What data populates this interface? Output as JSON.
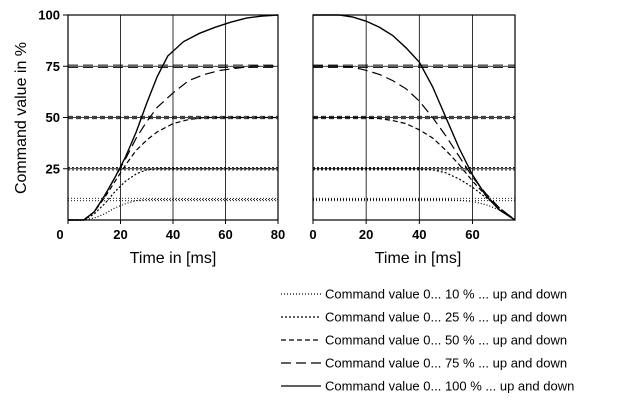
{
  "chart_data": [
    {
      "type": "line",
      "panel": "ramp-up",
      "xlabel": "Time in [ms]",
      "ylabel": "Command value in %",
      "xlim": [
        0,
        80
      ],
      "ylim": [
        0,
        100
      ],
      "xticks": [
        "0",
        "20",
        "40",
        "60",
        "80"
      ],
      "yticks": [
        "25",
        "50",
        "75",
        "100"
      ],
      "grid": true,
      "series": [
        {
          "dash": "1,2",
          "target": 10,
          "x": [
            0,
            4,
            6,
            10,
            14,
            18,
            22,
            26,
            30,
            34,
            40,
            50,
            60,
            70,
            80
          ],
          "y": [
            0,
            0,
            0,
            1,
            3,
            6,
            8,
            9.5,
            10,
            10,
            10,
            10,
            10,
            10,
            10
          ]
        },
        {
          "dash": "2,2",
          "target": 25,
          "x": [
            0,
            4,
            6,
            10,
            14,
            18,
            22,
            26,
            30,
            34,
            40,
            50,
            60,
            70,
            80
          ],
          "y": [
            0,
            0,
            0,
            3,
            8,
            14,
            19,
            22.5,
            24.5,
            25,
            25,
            25,
            25,
            25,
            25
          ]
        },
        {
          "dash": "5,3",
          "target": 50,
          "x": [
            0,
            4,
            6,
            10,
            14,
            18,
            22,
            26,
            30,
            34,
            40,
            46,
            52,
            60,
            70,
            80
          ],
          "y": [
            0,
            0,
            0,
            4,
            11,
            19,
            27,
            34,
            39,
            43,
            47,
            49,
            50,
            50,
            50,
            50
          ]
        },
        {
          "dash": "10,5",
          "target": 75,
          "x": [
            0,
            4,
            6,
            10,
            14,
            18,
            22,
            26,
            30,
            34,
            40,
            46,
            52,
            58,
            64,
            70,
            80
          ],
          "y": [
            0,
            0,
            0,
            4,
            12,
            21,
            30,
            40,
            48,
            55,
            62,
            68,
            71,
            73,
            74,
            75,
            75
          ]
        },
        {
          "dash": "",
          "target": 100,
          "x": [
            0,
            4,
            6,
            10,
            14,
            18,
            22,
            26,
            30,
            34,
            38,
            44,
            50,
            56,
            62,
            68,
            74,
            80
          ],
          "y": [
            0,
            0,
            0,
            4,
            12,
            21,
            31,
            43,
            57,
            70,
            80,
            87,
            91,
            94,
            96.5,
            98.5,
            99.5,
            100
          ]
        }
      ]
    },
    {
      "type": "line",
      "panel": "ramp-down",
      "xlabel": "Time in [ms]",
      "ylabel": "",
      "xlim": [
        0,
        76
      ],
      "ylim": [
        0,
        100
      ],
      "xticks": [
        "0",
        "20",
        "40",
        "60"
      ],
      "yticks": [],
      "grid": true,
      "series": [
        {
          "dash": "1,2",
          "target": 10,
          "x": [
            0,
            10,
            20,
            30,
            40,
            50,
            55,
            60,
            65,
            70,
            73,
            76
          ],
          "y": [
            10,
            10,
            10,
            10,
            10,
            10,
            9.7,
            9,
            7.5,
            5,
            3,
            0
          ]
        },
        {
          "dash": "2,2",
          "target": 25,
          "x": [
            0,
            10,
            20,
            30,
            40,
            45,
            50,
            55,
            60,
            65,
            70,
            76
          ],
          "y": [
            25,
            25,
            25,
            25,
            25,
            24.5,
            23,
            20,
            16,
            11,
            6,
            0
          ]
        },
        {
          "dash": "5,3",
          "target": 50,
          "x": [
            0,
            10,
            20,
            25,
            30,
            35,
            40,
            45,
            50,
            55,
            60,
            65,
            70,
            76
          ],
          "y": [
            50,
            50,
            50,
            49.5,
            48.5,
            47,
            44,
            40,
            34,
            27,
            19,
            12,
            6,
            0
          ]
        },
        {
          "dash": "10,5",
          "target": 75,
          "x": [
            0,
            10,
            15,
            20,
            25,
            30,
            35,
            40,
            45,
            50,
            55,
            60,
            65,
            70,
            76
          ],
          "y": [
            75,
            75,
            74.5,
            73,
            71,
            68,
            64,
            58,
            50,
            41,
            31,
            21,
            13,
            6,
            0
          ]
        },
        {
          "dash": "",
          "target": 100,
          "x": [
            0,
            5,
            10,
            15,
            20,
            25,
            30,
            35,
            40,
            45,
            50,
            55,
            60,
            65,
            70,
            76
          ],
          "y": [
            100,
            100,
            100,
            99,
            97,
            94,
            90,
            84,
            77,
            65,
            50,
            35,
            22,
            12,
            5,
            0
          ]
        }
      ]
    }
  ],
  "legend": [
    "Command value 0... 10 % ... up and down",
    "Command value 0... 25 % ... up and down",
    "Command value 0... 50 % ... up and down",
    "Command value 0... 75 % ... up and down",
    "Command value 0... 100 % ... up and down"
  ]
}
